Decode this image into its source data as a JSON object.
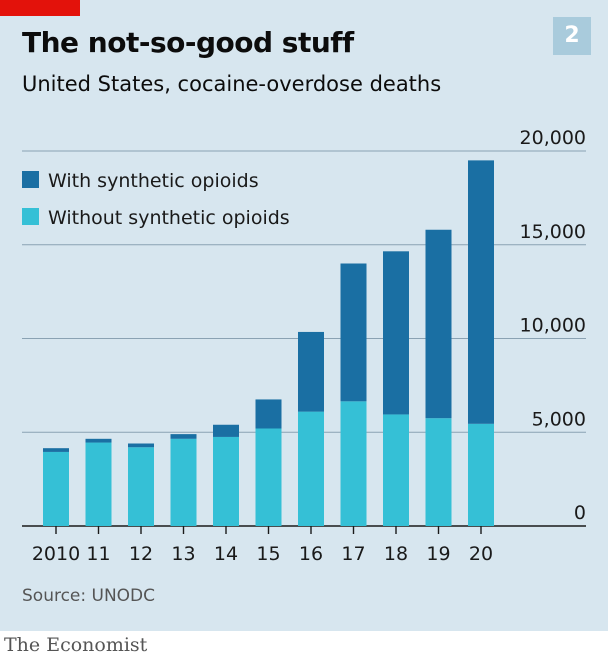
{
  "header": {
    "title": "The not-so-good stuff",
    "subtitle": "United States, cocaine-overdose deaths",
    "chart_number": "2"
  },
  "source": "Source: UNODC",
  "footer": "The Economist",
  "colors": {
    "background": "#d7e6ef",
    "with_synthetic": "#1a6fa3",
    "without_synthetic": "#35c0d6",
    "brand_red": "#e3120b",
    "badge": "#a9cbdc",
    "gridline": "#8aa2b3"
  },
  "chart_data": {
    "type": "bar",
    "stacked": true,
    "title": "The not-so-good stuff",
    "subtitle": "United States, cocaine-overdose deaths",
    "categories": [
      "2010",
      "11",
      "12",
      "13",
      "14",
      "15",
      "16",
      "17",
      "18",
      "19",
      "20"
    ],
    "series": [
      {
        "name": "Without synthetic opioids",
        "values": [
          3950,
          4450,
          4200,
          4650,
          4750,
          5200,
          6100,
          6650,
          5950,
          5750,
          5450
        ]
      },
      {
        "name": "With synthetic opioids",
        "values": [
          200,
          200,
          200,
          250,
          650,
          1550,
          4250,
          7350,
          8700,
          10050,
          14050
        ]
      }
    ],
    "ylim": [
      0,
      20000
    ],
    "yticks": [
      0,
      5000,
      10000,
      15000,
      20000
    ],
    "ytick_labels": [
      "0",
      "5,000",
      "10,000",
      "15,000",
      "20,000"
    ],
    "y_axis_side": "right",
    "grid": true,
    "legend_position": "top-left"
  }
}
